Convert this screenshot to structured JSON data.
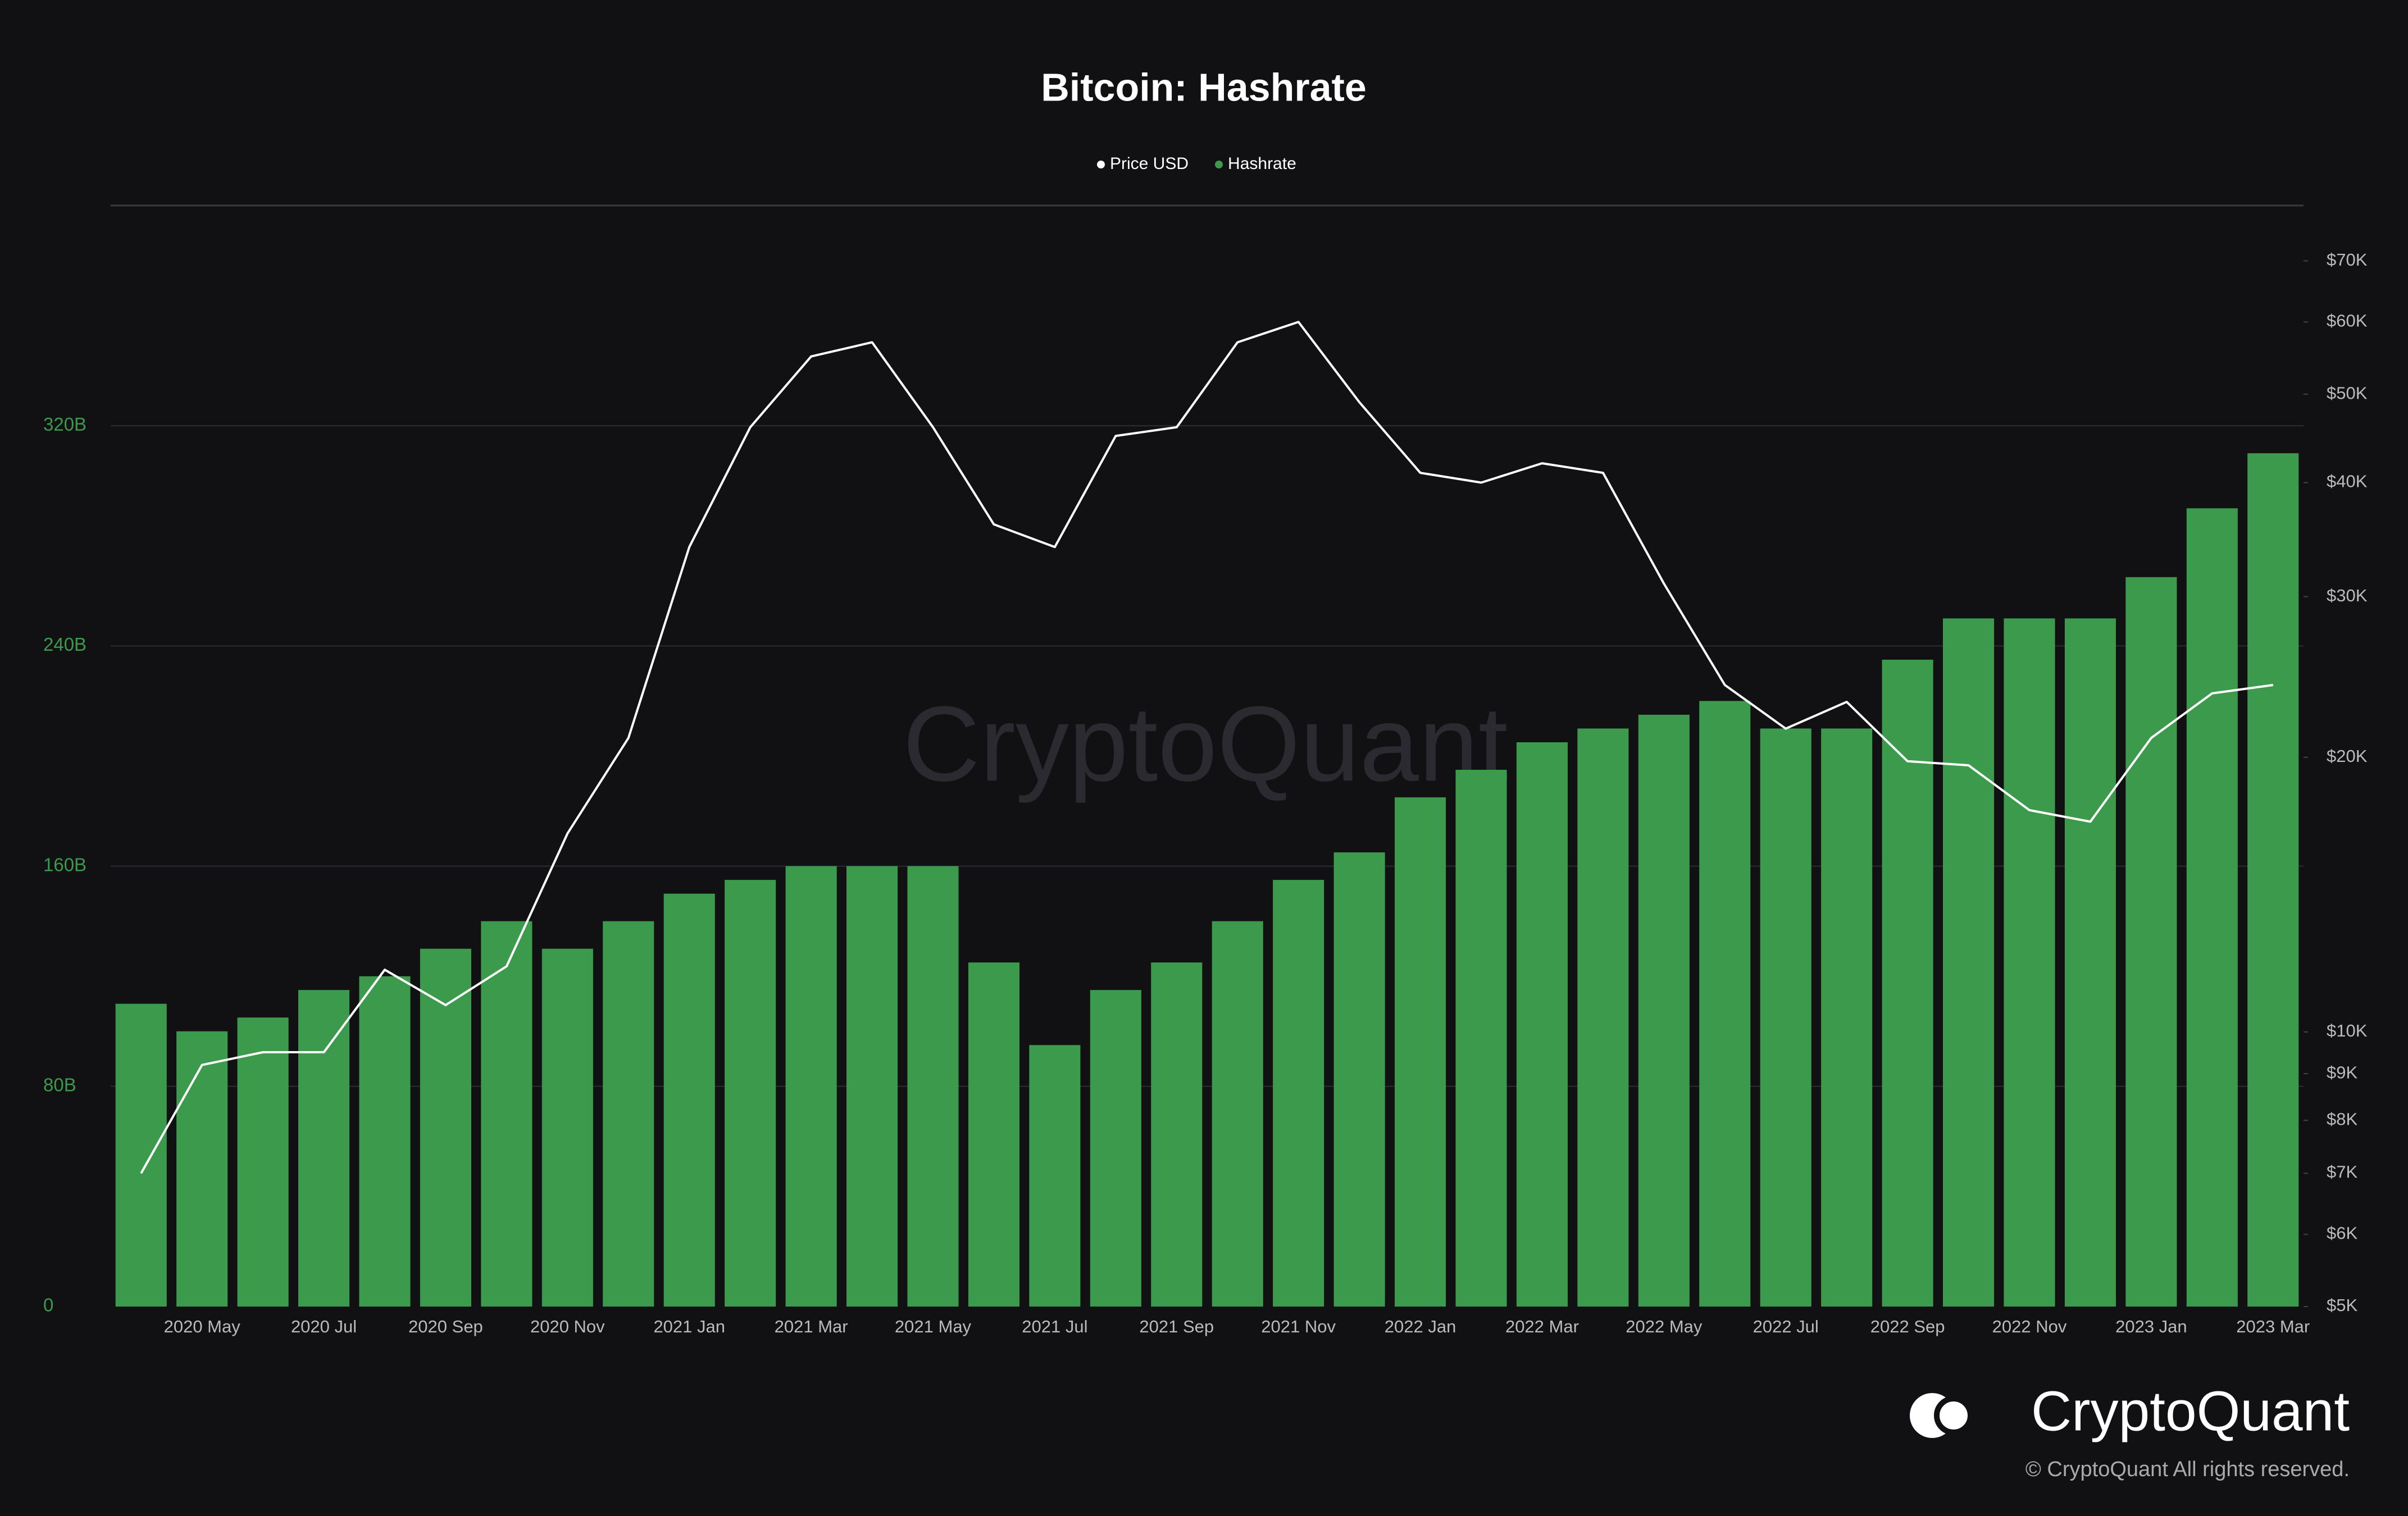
{
  "chart_data": {
    "type": "bar_line",
    "title": "Bitcoin: Hashrate",
    "watermark": "CryptoQuant",
    "brand": "CryptoQuant",
    "copyright": "© CryptoQuant All rights reserved.",
    "categories": [
      null,
      "2020 May",
      null,
      "2020 Jul",
      null,
      "2020 Sep",
      null,
      "2020 Nov",
      null,
      "2021 Jan",
      null,
      "2021 Mar",
      null,
      "2021 May",
      null,
      "2021 Jul",
      null,
      "2021 Sep",
      null,
      "2021 Nov",
      null,
      "2022 Jan",
      null,
      "2022 Mar",
      null,
      "2022 May",
      null,
      "2022 Jul",
      null,
      "2022 Sep",
      null,
      "2022 Nov",
      null,
      "2023 Jan",
      null,
      "2023 Mar"
    ],
    "series": [
      {
        "name": "Hashrate",
        "color": "#3c9a4c",
        "axis": "y",
        "values": [
          110000000000,
          100000000000,
          105000000000,
          115000000000,
          120000000000,
          130000000000,
          140000000000,
          130000000000,
          140000000000,
          150000000000,
          155000000000,
          160000000000,
          160000000000,
          160000000000,
          125000000000,
          95000000000,
          115000000000,
          125000000000,
          140000000000,
          155000000000,
          165000000000,
          185000000000,
          195000000000,
          205000000000,
          210000000000,
          215000000000,
          220000000000,
          210000000000,
          210000000000,
          235000000000,
          250000000000,
          250000000000,
          250000000000,
          265000000000,
          290000000000,
          310000000000
        ]
      },
      {
        "name": "Price USD",
        "color": "#ffffff",
        "axis": "y2",
        "values": [
          7000,
          9200,
          9500,
          9500,
          11700,
          10700,
          11800,
          16500,
          21000,
          34000,
          46000,
          55000,
          57000,
          46000,
          36000,
          34000,
          45000,
          46000,
          57000,
          60000,
          49000,
          41000,
          40000,
          42000,
          41000,
          31000,
          24000,
          21500,
          23000,
          19800,
          19600,
          17500,
          17000,
          21000,
          23500,
          24000
        ]
      }
    ],
    "legend_order": [
      1,
      0
    ],
    "ylim": [
      0,
      400000000000
    ],
    "yticks": [
      {
        "value": 0,
        "label": "0"
      },
      {
        "value": 80000000000,
        "label": "80B"
      },
      {
        "value": 160000000000,
        "label": "160B"
      },
      {
        "value": 240000000000,
        "label": "240B"
      },
      {
        "value": 320000000000,
        "label": "320B"
      }
    ],
    "y2lim": [
      5000,
      80500
    ],
    "y2_log": true,
    "y2ticks": [
      {
        "value": 5000,
        "label": "$5K"
      },
      {
        "value": 6000,
        "label": "$6K"
      },
      {
        "value": 7000,
        "label": "$7K"
      },
      {
        "value": 8000,
        "label": "$8K"
      },
      {
        "value": 9000,
        "label": "$9K"
      },
      {
        "value": 10000,
        "label": "$10K"
      },
      {
        "value": 20000,
        "label": "$20K"
      },
      {
        "value": 30000,
        "label": "$30K"
      },
      {
        "value": 40000,
        "label": "$40K"
      },
      {
        "value": 50000,
        "label": "$50K"
      },
      {
        "value": 60000,
        "label": "$60K"
      },
      {
        "value": 70000,
        "label": "$70K"
      }
    ],
    "grid": true
  }
}
